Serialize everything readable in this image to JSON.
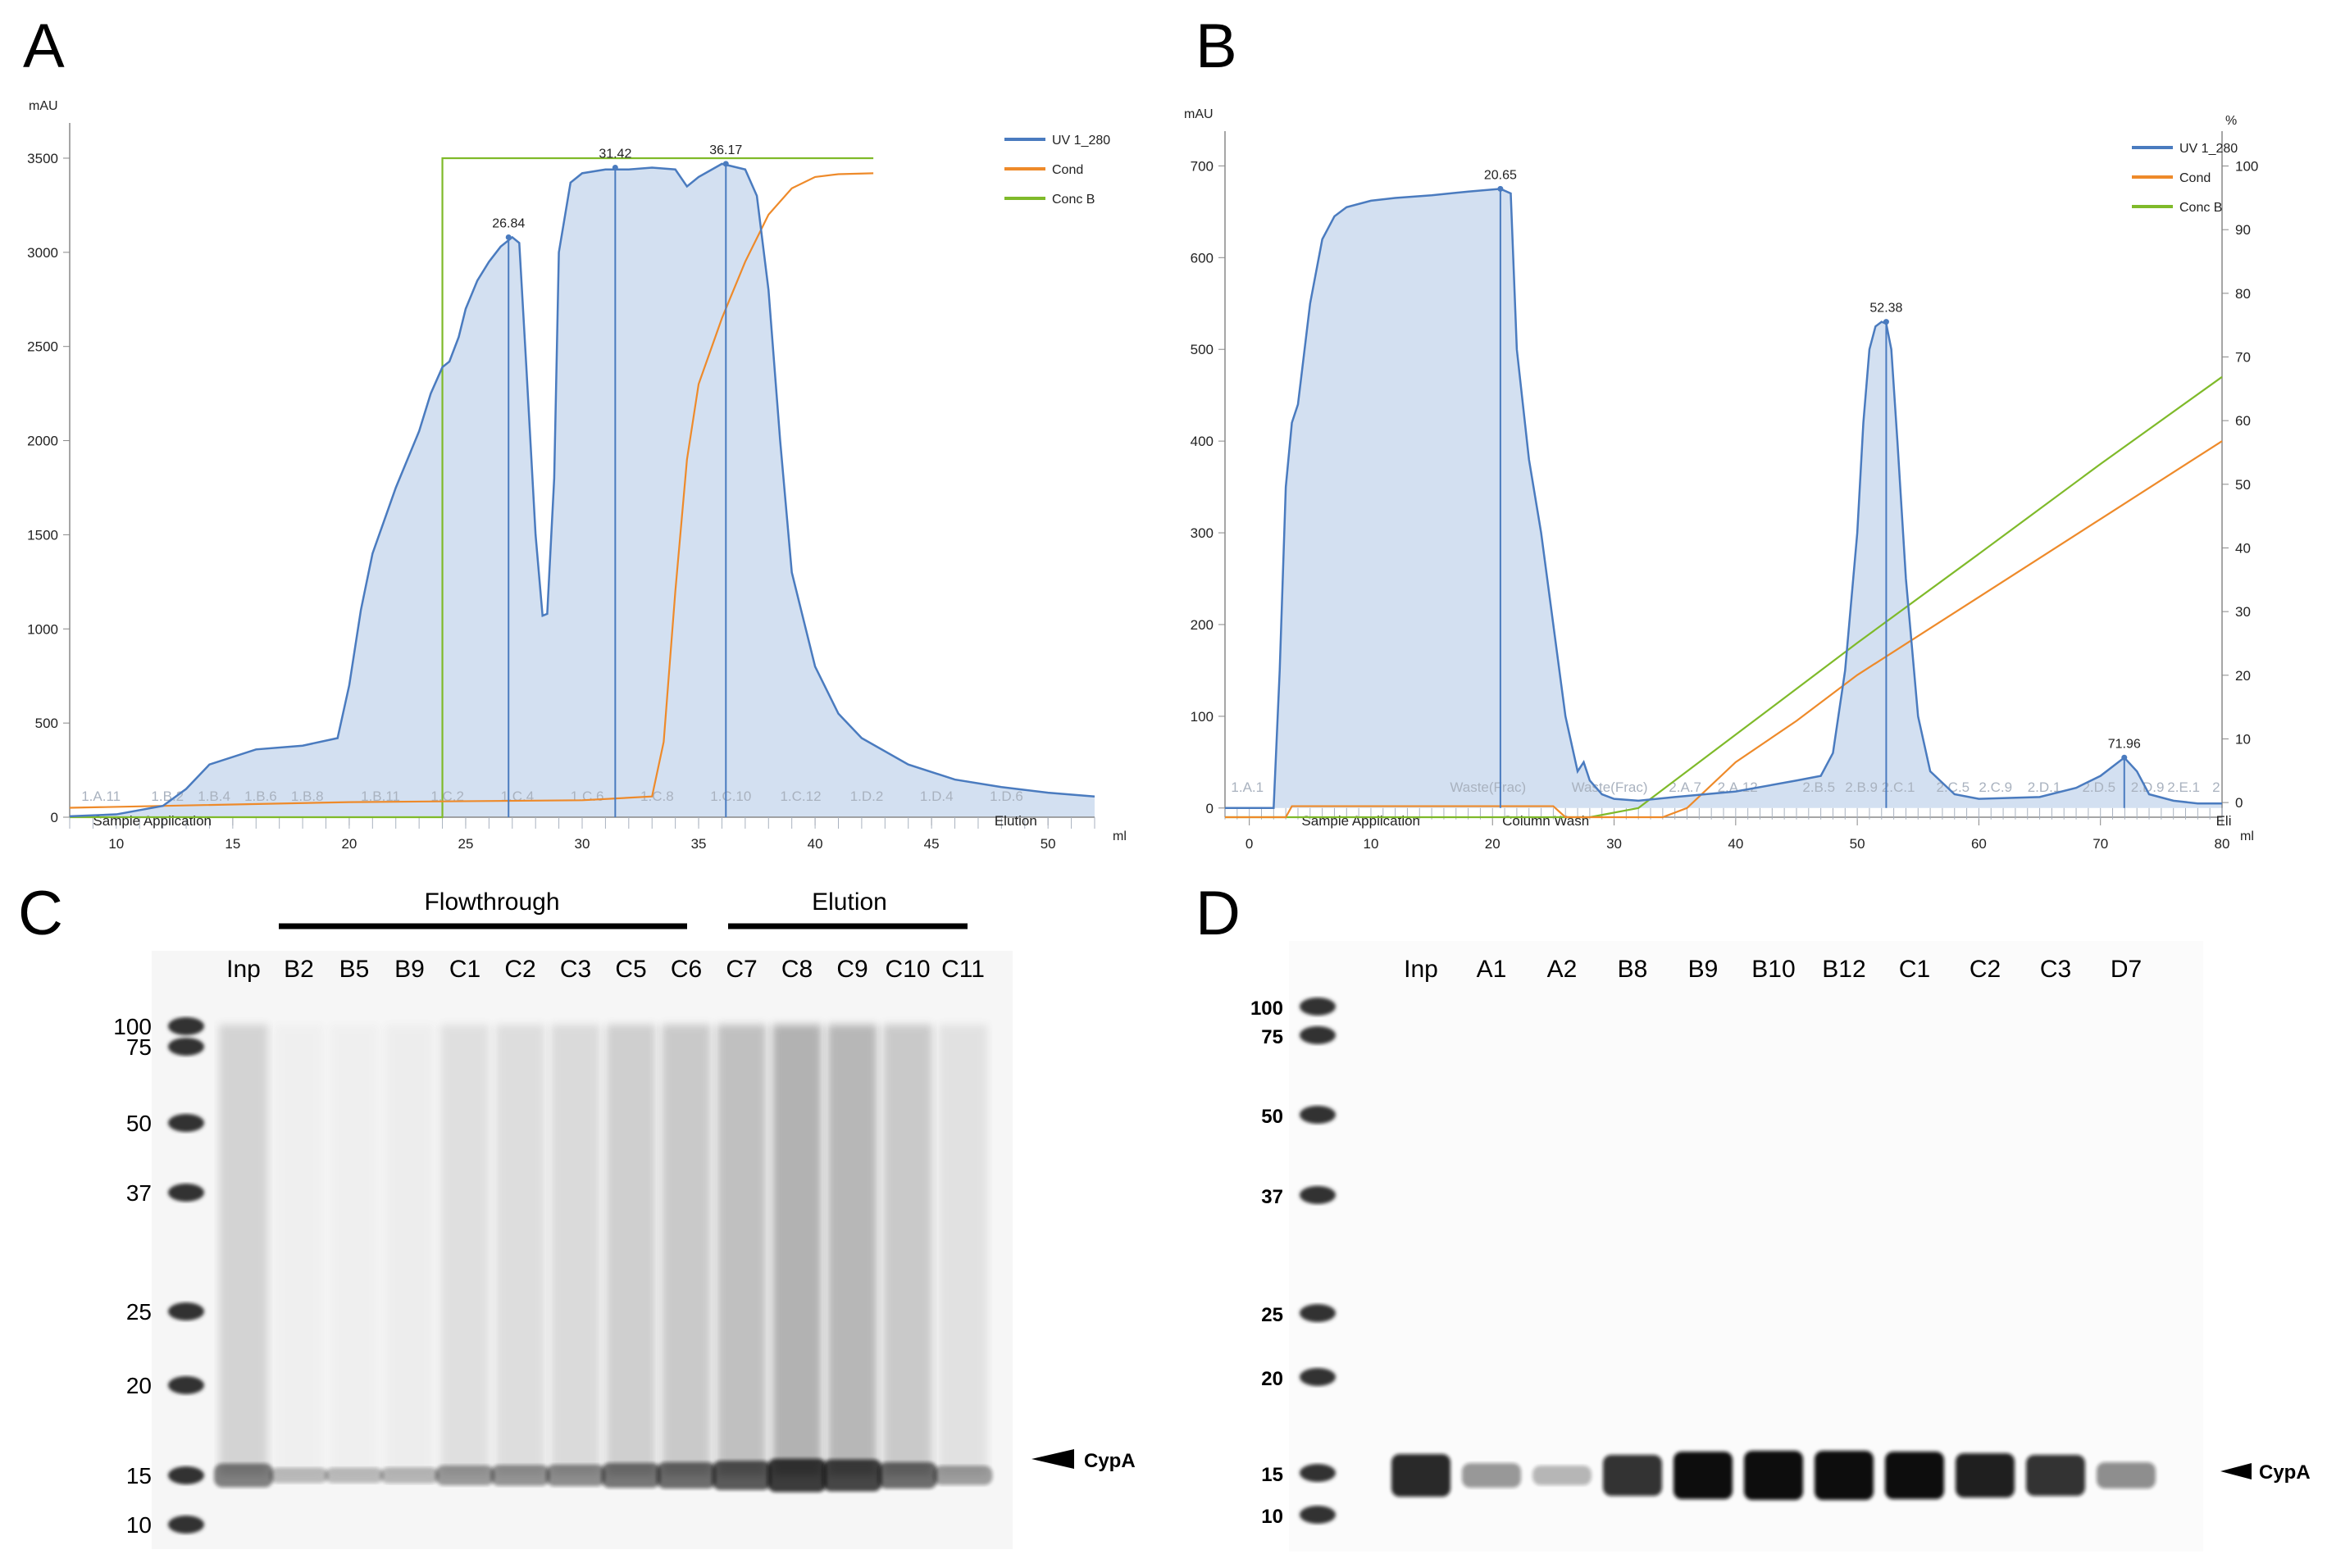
{
  "panel_letters": {
    "a": "A",
    "b": "B",
    "c": "C",
    "d": "D"
  },
  "colors": {
    "uv": "#4a7bbf",
    "cond": "#ee8a2a",
    "conc": "#7fba2a",
    "fill": "#d3e0f1",
    "frac": "#a9b2bf"
  },
  "chart_data": [
    {
      "type": "line",
      "panel": "A",
      "xlabel": "ml",
      "ylabel": "mAU",
      "xlim": [
        8,
        52
      ],
      "ylim": [
        0,
        3600
      ],
      "x_ticks": [
        10,
        15,
        20,
        25,
        30,
        35,
        40,
        45,
        50
      ],
      "y_ticks": [
        0,
        500,
        1000,
        1500,
        2000,
        2500,
        3000,
        3500
      ],
      "legend": [
        "UV 1_280",
        "Cond",
        "Conc B"
      ],
      "legend_position": "top-right",
      "series": [
        {
          "name": "UV 1_280",
          "x": [
            8,
            10,
            12,
            13,
            14,
            16,
            18,
            19.5,
            20,
            20.5,
            21,
            22,
            23,
            23.5,
            24,
            24.3,
            24.7,
            25,
            25.5,
            26,
            26.5,
            27,
            27.3,
            27.6,
            28,
            28.3,
            28.5,
            28.8,
            29,
            29.5,
            30,
            31,
            32,
            33,
            34,
            34.5,
            35,
            36,
            37,
            37.5,
            38,
            38.5,
            39,
            40,
            41,
            42,
            44,
            46,
            48,
            50,
            52
          ],
          "y": [
            5,
            15,
            60,
            150,
            280,
            360,
            380,
            420,
            700,
            1100,
            1400,
            1750,
            2050,
            2250,
            2390,
            2420,
            2550,
            2700,
            2850,
            2950,
            3030,
            3080,
            3050,
            2400,
            1500,
            1070,
            1080,
            1800,
            3000,
            3370,
            3420,
            3440,
            3440,
            3450,
            3440,
            3350,
            3400,
            3470,
            3440,
            3300,
            2800,
            2000,
            1300,
            800,
            550,
            420,
            280,
            200,
            160,
            130,
            110
          ]
        },
        {
          "name": "Cond",
          "x": [
            8,
            20,
            30,
            33,
            33.5,
            34,
            34.5,
            35,
            36,
            37,
            38,
            39,
            40,
            41,
            42.5
          ],
          "y": [
            50,
            80,
            90,
            110,
            400,
            1200,
            1900,
            2300,
            2650,
            2950,
            3200,
            3340,
            3400,
            3415,
            3420
          ]
        },
        {
          "name": "Conc B",
          "x": [
            8,
            24,
            24,
            42.5
          ],
          "y": [
            0,
            0,
            3500,
            3500
          ]
        }
      ],
      "peak_labels": [
        {
          "x": 26.84,
          "y": 3080,
          "label": "26.84"
        },
        {
          "x": 31.42,
          "y": 3450,
          "label": "31.42"
        },
        {
          "x": 36.17,
          "y": 3470,
          "label": "36.17"
        }
      ],
      "fraction_labels": [
        "1.A.11",
        "1.B.2",
        "1.B.4",
        "1.B.6",
        "1.B.8",
        "1.B.11",
        "1.C.2",
        "1.C.4",
        "1.C.6",
        "1.C.8",
        "1.C.10",
        "1.C.12",
        "1.D.2",
        "1.D.4",
        "1.D.6"
      ],
      "fraction_label_x": [
        8.5,
        11.5,
        13.5,
        15.5,
        17.5,
        20.5,
        23.5,
        26.5,
        29.5,
        32.5,
        35.5,
        38.5,
        41.5,
        44.5,
        47.5
      ],
      "phase_labels": [
        {
          "x": 9,
          "label": "Sample Application"
        },
        {
          "x": 47.7,
          "label": "Elution"
        }
      ]
    },
    {
      "type": "line",
      "panel": "B",
      "xlabel": "ml",
      "ylabel": "mAU",
      "y2label": "%",
      "xlim": [
        -2,
        80
      ],
      "ylim": [
        -10,
        720
      ],
      "y2lim": [
        -2.3,
        102.9
      ],
      "x_ticks": [
        0,
        10,
        20,
        30,
        40,
        50,
        60,
        70,
        80
      ],
      "y_ticks": [
        0,
        100,
        200,
        300,
        400,
        500,
        600,
        700
      ],
      "y2_ticks": [
        0,
        10,
        20,
        30,
        40,
        50,
        60,
        70,
        80,
        90,
        100
      ],
      "legend": [
        "UV 1_280",
        "Cond",
        "Conc B"
      ],
      "legend_position": "top-right",
      "series": [
        {
          "name": "UV 1_280",
          "x": [
            -2,
            2,
            2.5,
            3,
            3.5,
            4,
            5,
            6,
            7,
            8,
            10,
            12,
            15,
            18,
            20.65,
            21.5,
            22,
            23,
            24,
            25,
            26,
            27,
            27.5,
            28,
            29,
            30,
            32,
            35,
            40,
            45,
            47,
            48,
            49,
            50,
            50.5,
            51,
            51.5,
            52,
            52.38,
            52.8,
            53.3,
            54,
            55,
            56,
            58,
            60,
            65,
            68,
            70,
            71.96,
            73,
            74,
            76,
            78,
            80
          ],
          "y": [
            0,
            0,
            150,
            350,
            420,
            440,
            550,
            620,
            645,
            655,
            662,
            665,
            668,
            672,
            675,
            670,
            500,
            380,
            300,
            200,
            100,
            40,
            50,
            30,
            15,
            10,
            8,
            12,
            18,
            30,
            35,
            60,
            150,
            300,
            420,
            500,
            525,
            530,
            528,
            500,
            400,
            250,
            100,
            40,
            15,
            10,
            12,
            22,
            35,
            55,
            40,
            15,
            8,
            5,
            5
          ]
        },
        {
          "name": "Cond",
          "x": [
            -2,
            3,
            3.5,
            25,
            26,
            34,
            36,
            40,
            45,
            50,
            60,
            70,
            80
          ],
          "y": [
            -10,
            -10,
            2,
            2,
            -10,
            -10,
            0,
            50,
            95,
            145,
            230,
            315,
            400
          ]
        },
        {
          "name": "Conc B",
          "x": [
            -2,
            28,
            32,
            40,
            50,
            60,
            70,
            80
          ],
          "y": [
            -10,
            -10,
            0,
            80,
            180,
            277,
            375,
            470
          ]
        }
      ],
      "peak_labels": [
        {
          "x": 20.65,
          "y": 675,
          "label": "20.65"
        },
        {
          "x": 52.38,
          "y": 530,
          "label": "52.38"
        },
        {
          "x": 71.96,
          "y": 55,
          "label": "71.96"
        }
      ],
      "fraction_labels": [
        "1.A.1",
        "Waste(Frac)",
        "Waste(Frac)",
        "2.A.7",
        "2.A.12",
        "2.B.5",
        "2.B.9",
        "2.C.1",
        "2.C.5",
        "2.C.9",
        "2.D.1",
        "2.D.5",
        "2.D.9",
        "2.E.1",
        "2"
      ],
      "fraction_label_x": [
        -1.5,
        16.5,
        26.5,
        34.5,
        38.5,
        45.5,
        49.0,
        52.0,
        56.5,
        60.0,
        64.0,
        68.5,
        72.5,
        75.5,
        79.2
      ],
      "phase_labels": [
        {
          "x": 4.3,
          "label": "Sample Application"
        },
        {
          "x": 20.8,
          "label": "Column Wash"
        },
        {
          "x": 79.5,
          "label": "Eli"
        }
      ]
    }
  ],
  "gel_c": {
    "header_labels": {
      "flowthrough": "Flowthrough",
      "elution": "Elution"
    },
    "lanes": [
      "Inp",
      "B2",
      "B5",
      "B9",
      "C1",
      "C2",
      "C3",
      "C5",
      "C6",
      "C7",
      "C8",
      "C9",
      "C10",
      "C11"
    ],
    "mw_labels": [
      "100",
      "75",
      "50",
      "37",
      "25",
      "20",
      "15",
      "10"
    ],
    "band_label": "CypA",
    "intensity": [
      0.35,
      0.06,
      0.06,
      0.08,
      0.22,
      0.25,
      0.28,
      0.4,
      0.45,
      0.55,
      0.7,
      0.65,
      0.45,
      0.2
    ]
  },
  "gel_d": {
    "lanes": [
      "Inp",
      "A1",
      "A2",
      "B8",
      "B9",
      "B10",
      "B12",
      "C1",
      "C2",
      "C3",
      "D7"
    ],
    "mw_labels": [
      "100",
      "75",
      "50",
      "37",
      "25",
      "20",
      "15",
      "10"
    ],
    "band_label": "CypA",
    "intensity": [
      0.8,
      0.25,
      0.1,
      0.75,
      0.95,
      1.0,
      1.0,
      0.95,
      0.85,
      0.75,
      0.3
    ]
  }
}
